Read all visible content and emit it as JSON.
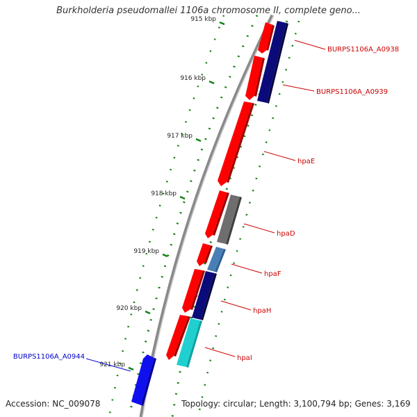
{
  "header": {
    "title": "Burkholderia pseudomallei 1106a chromosome II, complete geno..."
  },
  "footer": {
    "accession": "Accession: NC_009078",
    "topology": "Topology: circular; Length: 3,100,794 bp; Genes: 3,169"
  },
  "colors": {
    "backbone": "#8a8a8a",
    "forward_gene": "#ff0000",
    "navy_gene": "#0a0a7a",
    "gray_gene": "#6e6e6e",
    "steel_gene": "#4a7fb5",
    "cyan_gene": "#20d0d0",
    "blue_gene": "#1010ee",
    "tick_line": "#108010",
    "label_red": "#cc0000",
    "label_blue": "#0000cc"
  },
  "axis_ticks": [
    "915 kbp",
    "916 kbp",
    "917 kbp",
    "918 kbp",
    "919 kbp",
    "920 kbp",
    "921 kbp"
  ],
  "gene_labels": [
    {
      "text": "BURPS1106A_A0938",
      "color": "red"
    },
    {
      "text": "BURPS1106A_A0939",
      "color": "red"
    },
    {
      "text": "hpaE",
      "color": "red"
    },
    {
      "text": "hpaD",
      "color": "red"
    },
    {
      "text": "hpaF",
      "color": "red"
    },
    {
      "text": "hpaH",
      "color": "red"
    },
    {
      "text": "hpaI",
      "color": "red"
    },
    {
      "text": "BURPS1106A_A0944",
      "color": "blue"
    }
  ]
}
